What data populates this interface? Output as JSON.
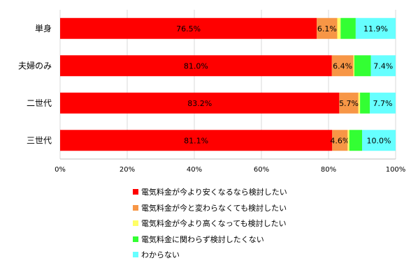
{
  "chart_data": {
    "type": "bar",
    "orientation": "horizontal",
    "stacked": true,
    "categories": [
      "単身",
      "夫婦のみ",
      "二世代",
      "三世代"
    ],
    "series": [
      {
        "name": "電気料金が今より安くなるなら検討したい",
        "color": "#FF0000",
        "values": [
          76.5,
          81.0,
          83.2,
          81.1
        ],
        "labels": [
          "76.5%",
          "81.0%",
          "83.2%",
          "81.1%"
        ]
      },
      {
        "name": "電気料金が今と変わらなくても検討したい",
        "color": "#F79646",
        "values": [
          6.1,
          6.4,
          5.7,
          4.6
        ],
        "labels": [
          "6.1%",
          "6.4%",
          "5.7%",
          "4.6%"
        ]
      },
      {
        "name": "電気料金が今より高くなっても検討したい",
        "color": "#FFFF66",
        "values": [
          1.0,
          0.3,
          0.5,
          0.5
        ],
        "labels": [
          "",
          "",
          "",
          ""
        ]
      },
      {
        "name": "電気料金に関わらず検討したくない",
        "color": "#33FF33",
        "values": [
          4.5,
          4.9,
          2.9,
          3.8
        ],
        "labels": [
          "",
          "",
          "",
          ""
        ]
      },
      {
        "name": "わからない",
        "color": "#66FFFF",
        "values": [
          11.9,
          7.4,
          7.7,
          10.0
        ],
        "labels": [
          "11.9%",
          "7.4%",
          "7.7%",
          "10.0%"
        ]
      }
    ],
    "x_ticks": [
      "0%",
      "20%",
      "40%",
      "60%",
      "80%",
      "100%"
    ],
    "xlim": [
      0,
      100
    ],
    "grid": true,
    "legend_position": "bottom"
  }
}
